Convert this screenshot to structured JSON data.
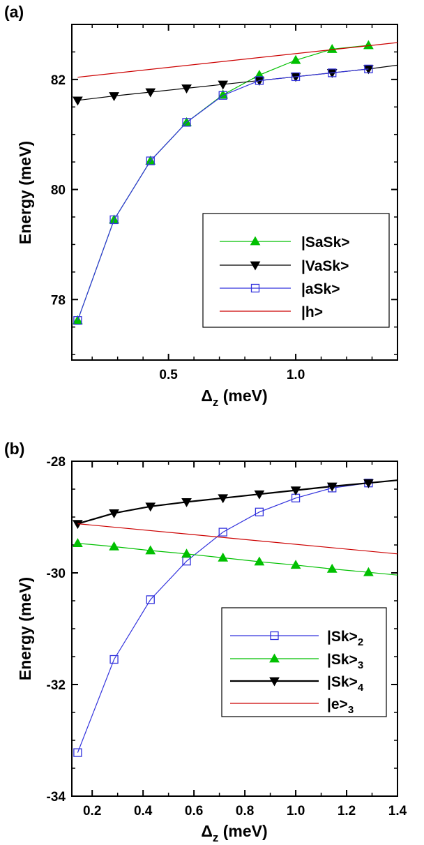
{
  "chart_data": [
    {
      "type": "line",
      "panel_label": "(a)",
      "xlabel": "Δ",
      "xlabel_sub": "z",
      "xlabel_unit": "(meV)",
      "ylabel": "Energy  (meV)",
      "xlim": [
        0.12,
        1.4
      ],
      "ylim": [
        76.9,
        83.0
      ],
      "xticks": [
        0.5,
        1.0
      ],
      "xtick_labels": [
        "0.5",
        "1.0"
      ],
      "yticks": [
        78,
        80,
        82
      ],
      "ytick_labels": [
        "78",
        "80",
        "82"
      ],
      "grid": false,
      "legend_position": "lower-right",
      "series": [
        {
          "name": "|SaSk>",
          "color": "#00c000",
          "marker": "triangle-up",
          "x": [
            0.143,
            0.286,
            0.429,
            0.571,
            0.714,
            0.857,
            1.0,
            1.143,
            1.286
          ],
          "y": [
            77.62,
            79.45,
            80.52,
            81.22,
            81.72,
            82.08,
            82.35,
            82.55,
            82.62
          ]
        },
        {
          "name": "|VaSk>",
          "color": "#000000",
          "marker": "triangle-down",
          "x": [
            0.143,
            0.286,
            0.429,
            0.571,
            0.714,
            0.857,
            1.0,
            1.143,
            1.286,
            1.4
          ],
          "y": [
            81.62,
            81.7,
            81.77,
            81.84,
            81.91,
            81.98,
            82.05,
            82.12,
            82.19,
            82.26
          ]
        },
        {
          "name": "|aSk>",
          "color": "#3333dd",
          "marker": "square-open",
          "x": [
            0.143,
            0.286,
            0.429,
            0.571,
            0.714,
            0.857,
            1.0,
            1.143,
            1.286
          ],
          "y": [
            77.62,
            79.45,
            80.52,
            81.22,
            81.71,
            81.98,
            82.05,
            82.12,
            82.19
          ]
        },
        {
          "name": "|h>",
          "color": "#cc0000",
          "marker": "none",
          "x": [
            0.143,
            1.4
          ],
          "y": [
            82.04,
            82.67
          ]
        }
      ]
    },
    {
      "type": "line",
      "panel_label": "(b)",
      "xlabel": "Δ",
      "xlabel_sub": "z",
      "xlabel_unit": "(meV)",
      "ylabel": "Energy  (meV)",
      "xlim": [
        0.12,
        1.4
      ],
      "ylim": [
        -34,
        -28
      ],
      "xticks": [
        0.2,
        0.4,
        0.6,
        0.8,
        1.0,
        1.2,
        1.4
      ],
      "xtick_labels": [
        "0.2",
        "0.4",
        "0.6",
        "0.8",
        "1.0",
        "1.2",
        "1.4"
      ],
      "yticks": [
        -34,
        -32,
        -30,
        -28
      ],
      "ytick_labels": [
        "-34",
        "-32",
        "-30",
        "-28"
      ],
      "grid": false,
      "legend_position": "lower-right",
      "series": [
        {
          "name": "|Sk>",
          "name_sub": "2",
          "color": "#3333dd",
          "marker": "square-open",
          "x": [
            0.143,
            0.286,
            0.429,
            0.571,
            0.714,
            0.857,
            1.0,
            1.143,
            1.286
          ],
          "y": [
            -33.22,
            -31.55,
            -30.48,
            -29.79,
            -29.27,
            -28.91,
            -28.66,
            -28.48,
            -28.39
          ]
        },
        {
          "name": "|Sk>",
          "name_sub": "3",
          "color": "#00c000",
          "marker": "triangle-up",
          "x": [
            0.143,
            0.286,
            0.429,
            0.571,
            0.714,
            0.857,
            1.0,
            1.143,
            1.286,
            1.4
          ],
          "y": [
            -29.47,
            -29.53,
            -29.6,
            -29.66,
            -29.73,
            -29.8,
            -29.86,
            -29.93,
            -29.99,
            -30.04
          ]
        },
        {
          "name": "|Sk>",
          "name_sub": "4",
          "color": "#000000",
          "marker": "triangle-down",
          "x": [
            0.143,
            0.286,
            0.429,
            0.571,
            0.714,
            0.857,
            1.0,
            1.143,
            1.286,
            1.4
          ],
          "y": [
            -29.12,
            -28.93,
            -28.81,
            -28.73,
            -28.66,
            -28.59,
            -28.52,
            -28.45,
            -28.39,
            -28.34
          ]
        },
        {
          "name": "|e>",
          "name_sub": "3",
          "color": "#cc0000",
          "marker": "none",
          "x": [
            0.143,
            1.4
          ],
          "y": [
            -29.12,
            -29.66
          ]
        }
      ]
    }
  ]
}
